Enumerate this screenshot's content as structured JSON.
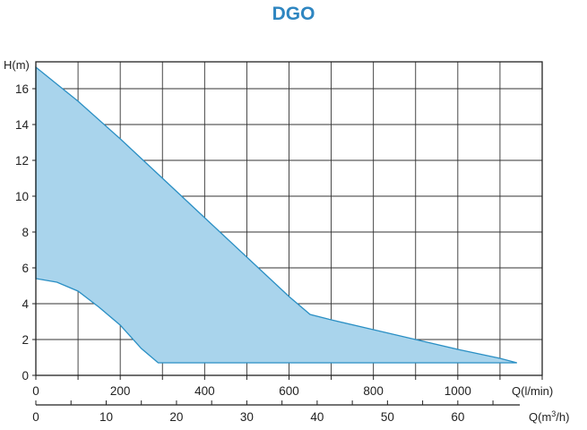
{
  "chart_data": {
    "type": "area",
    "title": "DGO",
    "ylabel": "H(m)",
    "xlabel": "Q(l/min)",
    "x2label": "Q(m³/h)",
    "xlim": [
      0,
      1200
    ],
    "ylim": [
      0,
      17.5
    ],
    "x_ticks": [
      0,
      200,
      400,
      600,
      800,
      1000
    ],
    "y_ticks": [
      0,
      2,
      4,
      6,
      8,
      10,
      12,
      14,
      16
    ],
    "x2_ticks": [
      0,
      10,
      20,
      30,
      40,
      50,
      60
    ],
    "x2_factor_l_min_per_m3h": 16.6667,
    "grid": true,
    "fill_color": "#a9d4ec",
    "line_color": "#2a8fc4",
    "upper_curve": {
      "x": [
        0,
        100,
        200,
        300,
        400,
        500,
        600,
        650,
        700,
        800,
        900,
        1000,
        1100,
        1140
      ],
      "y": [
        17.2,
        15.3,
        13.2,
        11.0,
        8.8,
        6.6,
        4.4,
        3.4,
        3.1,
        2.55,
        2.0,
        1.45,
        0.95,
        0.7
      ]
    },
    "lower_curve": {
      "x": [
        0,
        50,
        100,
        150,
        200,
        250,
        290,
        300,
        400,
        600,
        800,
        1000,
        1140
      ],
      "y": [
        5.4,
        5.2,
        4.7,
        3.8,
        2.8,
        1.5,
        0.7,
        0.7,
        0.7,
        0.7,
        0.7,
        0.7,
        0.7
      ]
    }
  }
}
